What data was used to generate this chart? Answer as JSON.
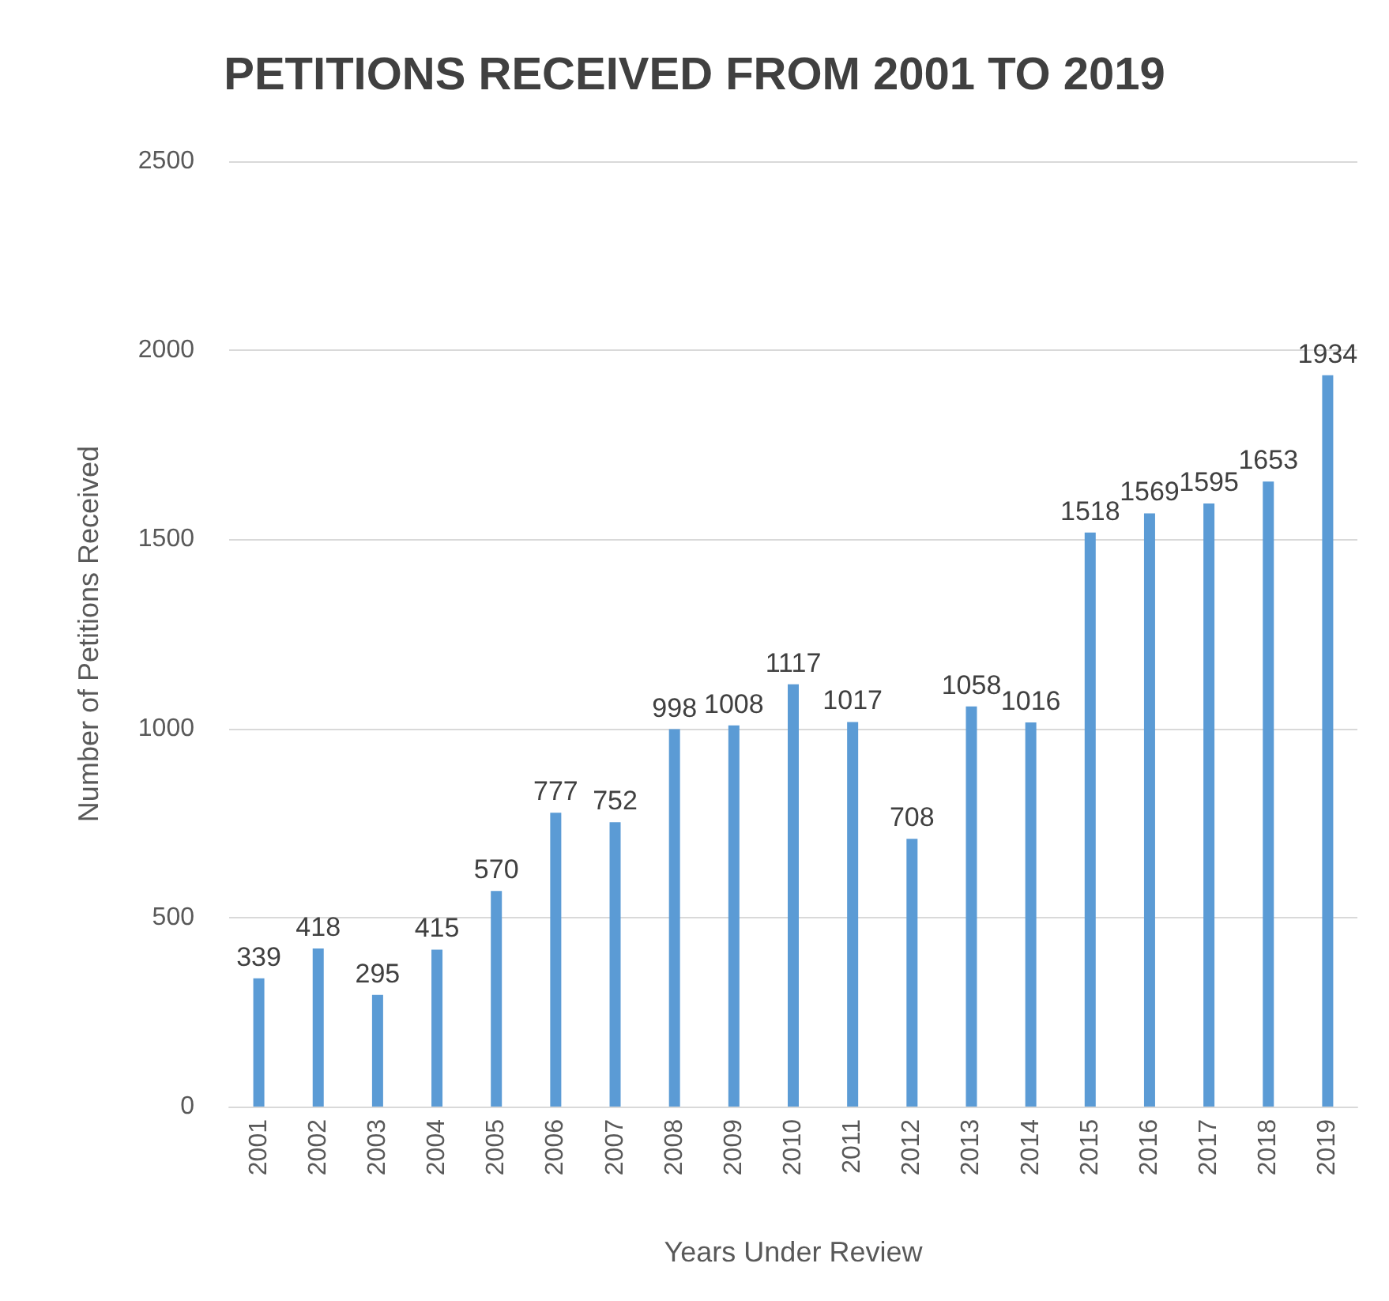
{
  "chart_data": {
    "type": "bar",
    "title": "PETITIONS RECEIVED FROM 2001 TO 2019",
    "xlabel": "Years Under Review",
    "ylabel": "Number of Petitions Received",
    "categories": [
      "2001",
      "2002",
      "2003",
      "2004",
      "2005",
      "2006",
      "2007",
      "2008",
      "2009",
      "2010",
      "2011",
      "2012",
      "2013",
      "2014",
      "2015",
      "2016",
      "2017",
      "2018",
      "2019"
    ],
    "values": [
      339,
      418,
      295,
      415,
      570,
      777,
      752,
      998,
      1008,
      1117,
      1017,
      708,
      1058,
      1016,
      1518,
      1569,
      1595,
      1653,
      1934
    ],
    "color": "#5b9bd5",
    "ylim": [
      0,
      2500
    ],
    "yticks": [
      0,
      500,
      1000,
      1500,
      2000,
      2500
    ],
    "grid": "y",
    "data_labels": true
  }
}
